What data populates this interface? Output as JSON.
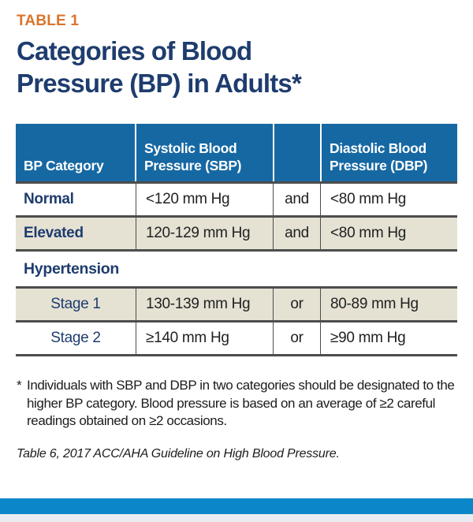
{
  "page": {
    "label": "TABLE 1",
    "title_lines": [
      "Categories of Blood",
      "Pressure (BP) in Adults*"
    ]
  },
  "table": {
    "header": {
      "category": "BP Category",
      "sbp_line1": "Systolic Blood",
      "sbp_line2": "Pressure (SBP)",
      "conjunction": "",
      "dbp_line1": "Diastolic Blood",
      "dbp_line2": "Pressure (DBP)"
    },
    "rows": [
      {
        "category": "Normal",
        "sbp": "<120 mm Hg",
        "conjunction": "and",
        "dbp": "<80 mm Hg"
      },
      {
        "category": "Elevated",
        "sbp": "120-129 mm Hg",
        "conjunction": "and",
        "dbp": "<80 mm Hg"
      }
    ],
    "section": {
      "label": "Hypertension"
    },
    "stage_rows": [
      {
        "category": "Stage 1",
        "sbp": "130-139 mm Hg",
        "conjunction": "or",
        "dbp": "80-89 mm Hg"
      },
      {
        "category": "Stage 2",
        "sbp": "≥140 mm Hg",
        "conjunction": "or",
        "dbp": "≥90 mm Hg"
      }
    ]
  },
  "footnote": {
    "marker": "*",
    "lines": [
      "Individuals with SBP and DBP in two categories should be designated to the",
      "higher BP category. Blood pressure is based on an average of ≥2 careful",
      "readings obtained on ≥2 occasions."
    ]
  },
  "source": "Table 6, 2017 ACC/AHA Guideline on High Blood Pressure.",
  "colors": {
    "accent_orange": "#d8752c",
    "title_navy": "#1e3c6e",
    "header_blue": "#1668a3",
    "row_beige": "#e5e2d4",
    "bar_blue": "#0b87c9",
    "rule_gray": "#4d4d4d"
  }
}
